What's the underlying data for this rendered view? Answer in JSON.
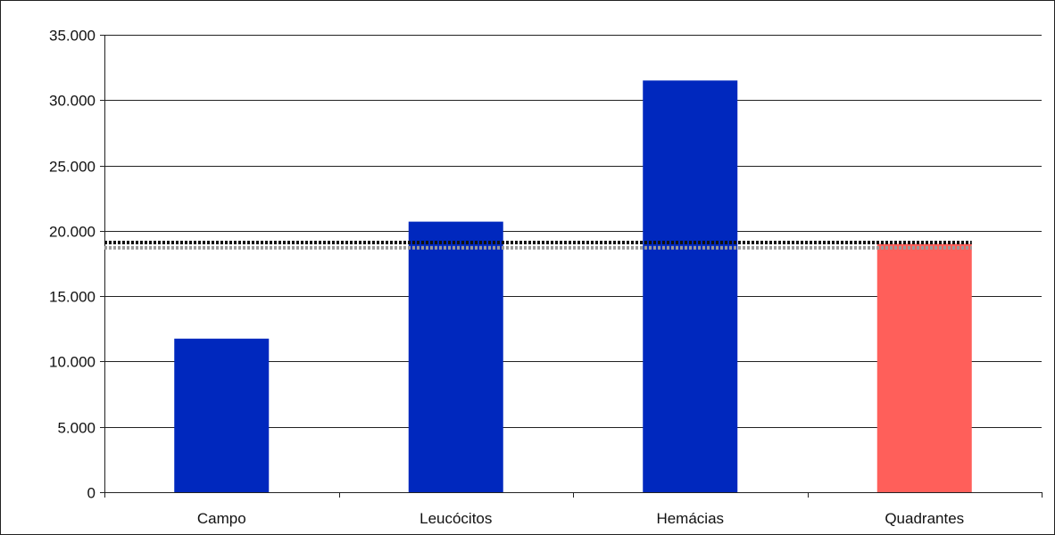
{
  "chart_data": {
    "type": "bar",
    "title": "",
    "xlabel": "",
    "ylabel": "",
    "categories": [
      "Campo",
      "Leucócitos",
      "Hemácias",
      "Quadrantes"
    ],
    "values": [
      11750,
      20700,
      31500,
      19000
    ],
    "bar_colors": [
      "#0028BE",
      "#0028BE",
      "#0028BE",
      "#FF5F5A"
    ],
    "ylim": [
      0,
      35000
    ],
    "yticks": [
      0,
      5000,
      10000,
      15000,
      20000,
      25000,
      30000,
      35000
    ],
    "ytick_labels": [
      "0",
      "5.000",
      "10.000",
      "15.000",
      "20.000",
      "25.000",
      "30.000",
      "35.000"
    ],
    "grid": true,
    "legend": "none",
    "reference_lines": [
      {
        "value": 19100,
        "style": "dotted",
        "color": "#111111"
      },
      {
        "value": 18700,
        "style": "dotted",
        "color": "#999999"
      }
    ]
  }
}
